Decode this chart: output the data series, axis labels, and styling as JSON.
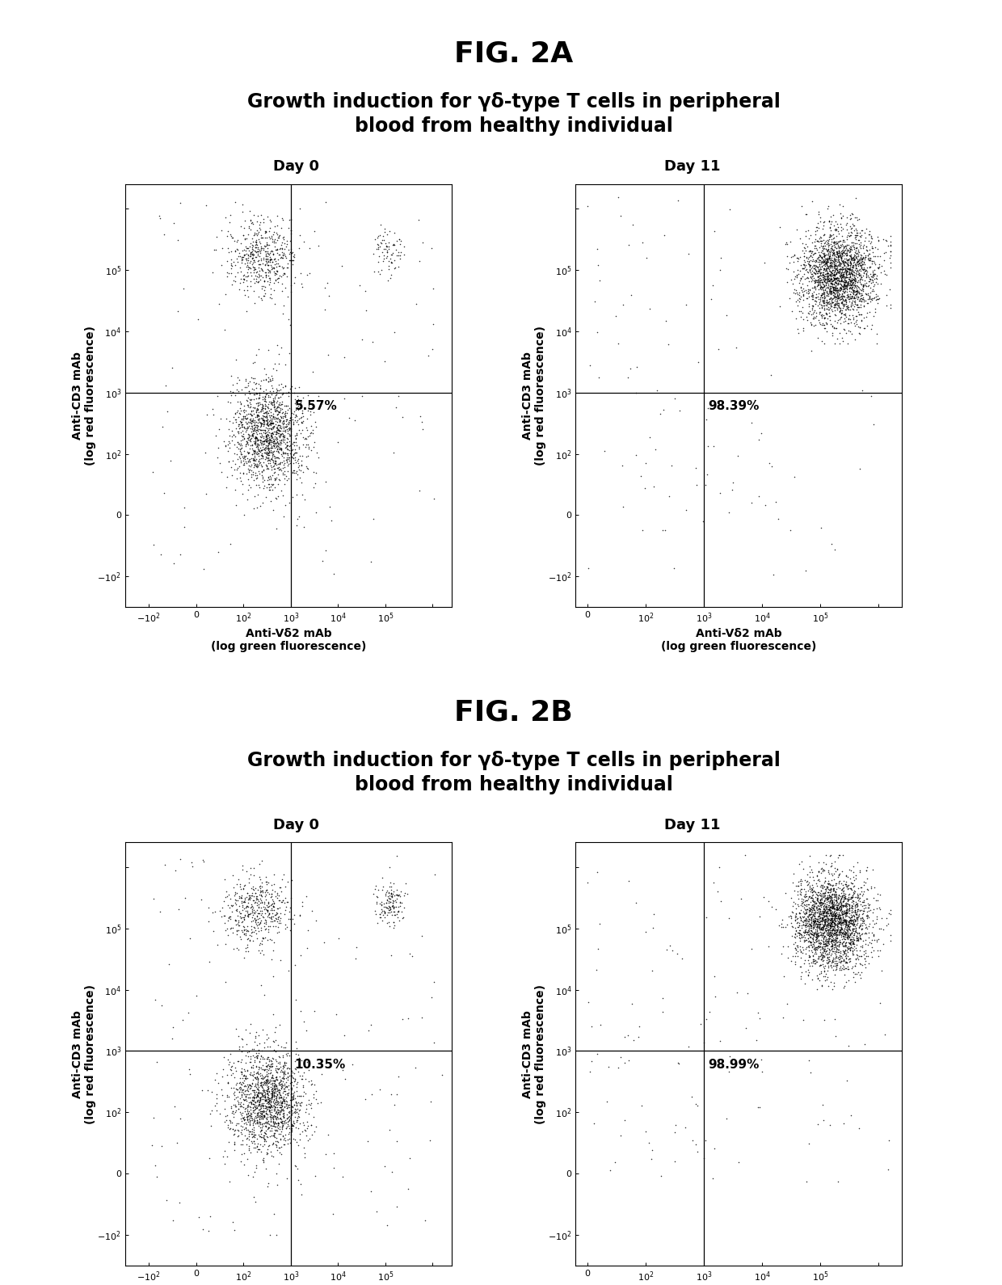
{
  "fig2a_title": "FIG. 2A",
  "fig2b_title": "FIG. 2B",
  "subtitle_line1": "Growth induction for γδ-type T cells in peripheral",
  "subtitle_line2": "blood from healthy individual",
  "day0_label": "Day 0",
  "day11_label": "Day 11",
  "ylabel": "Anti-CD3 mAb\n(log red fluorescence)",
  "xlabel_line1": "Anti-Vδ2 mAb",
  "xlabel_line2": "(log green fluorescence)",
  "pct_2a_day0": "5.57%",
  "pct_2a_day11": "98.39%",
  "pct_2b_day0": "10.35%",
  "pct_2b_day11": "98.99%",
  "bg_color": "#ffffff",
  "title_fontsize": 26,
  "subtitle_fontsize": 17,
  "day_label_fontsize": 13,
  "axis_label_fontsize": 10,
  "pct_fontsize": 11,
  "tick_fontsize": 8
}
